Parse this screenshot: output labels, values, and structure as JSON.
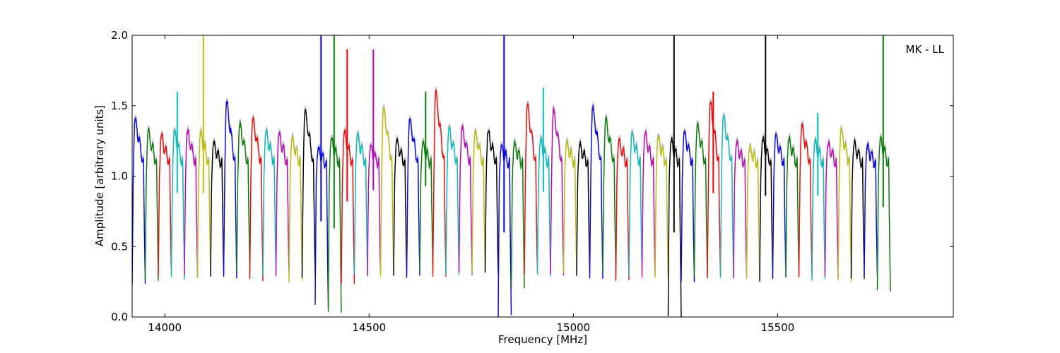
{
  "chart_data": {
    "type": "line",
    "title": "",
    "xlabel": "Frequency [MHz]",
    "ylabel": "Amplitude [arbitrary units]",
    "annotation": "MK - LL",
    "xlim": [
      13920,
      15930
    ],
    "ylim": [
      0.0,
      2.0
    ],
    "xticks": [
      14000,
      14500,
      15000,
      15500
    ],
    "xtick_labels": [
      "14000",
      "14500",
      "15000",
      "15500"
    ],
    "yticks": [
      0.0,
      0.5,
      1.0,
      1.5,
      2.0
    ],
    "ytick_labels": [
      "0.0",
      "0.5",
      "1.0",
      "1.5",
      "2.0"
    ],
    "grid": false,
    "legend": "none",
    "color_cycle": [
      "#0000ff",
      "#008000",
      "#ff0000",
      "#00bfbf",
      "#bf00bf",
      "#bfbf00",
      "#000000"
    ],
    "background_trace_color": "#bfbfbf",
    "channel_width_mhz": 32,
    "channel_start_mhz": 13920,
    "channels": [
      {
        "peak": 1.4,
        "min": 0.22
      },
      {
        "peak": 1.31,
        "min": 0.27
      },
      {
        "peak": 1.28,
        "min": 0.3
      },
      {
        "peak": 1.31,
        "min": 0.28,
        "spike": 1.6
      },
      {
        "peak": 1.31,
        "min": 0.3
      },
      {
        "peak": 1.3,
        "min": 0.28,
        "spike": 2.0
      },
      {
        "peak": 1.22,
        "min": 0.3
      },
      {
        "peak": 1.53,
        "min": 0.28
      },
      {
        "peak": 1.36,
        "min": 0.32
      },
      {
        "peak": 1.4,
        "min": 0.27
      },
      {
        "peak": 1.31,
        "min": 0.3
      },
      {
        "peak": 1.29,
        "min": 0.3
      },
      {
        "peak": 1.25,
        "min": 0.25
      },
      {
        "peak": 1.46,
        "min": 0.28
      },
      {
        "peak": 1.18,
        "min": 0.08,
        "spike": 2.0
      },
      {
        "peak": 1.25,
        "min": 0.03,
        "spike": 2.0
      },
      {
        "peak": 1.3,
        "min": 0.22,
        "spike": 1.9
      },
      {
        "peak": 1.28,
        "min": 0.3
      },
      {
        "peak": 1.2,
        "min": 0.3,
        "spike": 1.9
      },
      {
        "peak": 1.48,
        "min": 0.3
      },
      {
        "peak": 1.24,
        "min": 0.3
      },
      {
        "peak": 1.4,
        "min": 0.28
      },
      {
        "peak": 1.22,
        "min": 0.33,
        "spike": 1.6
      },
      {
        "peak": 1.6,
        "min": 0.3
      },
      {
        "peak": 1.33,
        "min": 0.3
      },
      {
        "peak": 1.34,
        "min": 0.31
      },
      {
        "peak": 1.3,
        "min": 0.31
      },
      {
        "peak": 1.31,
        "min": 0.3
      },
      {
        "peak": 1.2,
        "min": 0.0,
        "spike": 2.0
      },
      {
        "peak": 1.22,
        "min": 0.2
      },
      {
        "peak": 1.5,
        "min": 0.3
      },
      {
        "peak": 1.24,
        "min": 0.29,
        "spike": 1.63
      },
      {
        "peak": 1.47,
        "min": 0.3
      },
      {
        "peak": 1.22,
        "min": 0.3
      },
      {
        "peak": 1.21,
        "min": 0.3
      },
      {
        "peak": 1.49,
        "min": 0.28
      },
      {
        "peak": 1.4,
        "min": 0.3
      },
      {
        "peak": 1.24,
        "min": 0.25
      },
      {
        "peak": 1.29,
        "min": 0.3
      },
      {
        "peak": 1.29,
        "min": 0.29
      },
      {
        "peak": 1.26,
        "min": 0.27
      },
      {
        "peak": 1.24,
        "min": 0.0,
        "spike": 2.0
      },
      {
        "peak": 1.3,
        "min": 0.24
      },
      {
        "peak": 1.35,
        "min": 0.28
      },
      {
        "peak": 1.52,
        "min": 0.28,
        "spike": 1.6
      },
      {
        "peak": 1.42,
        "min": 0.28
      },
      {
        "peak": 1.22,
        "min": 0.29
      },
      {
        "peak": 1.18,
        "min": 0.27
      },
      {
        "peak": 1.25,
        "min": 0.26,
        "spike": 2.0
      },
      {
        "peak": 1.28,
        "min": 0.29
      },
      {
        "peak": 1.25,
        "min": 0.28
      },
      {
        "peak": 1.35,
        "min": 0.28
      },
      {
        "peak": 1.23,
        "min": 0.26,
        "spike": 1.45
      },
      {
        "peak": 1.22,
        "min": 0.28
      },
      {
        "peak": 1.32,
        "min": 0.26
      },
      {
        "peak": 1.22,
        "min": 0.28
      },
      {
        "peak": 1.2,
        "min": 0.28
      },
      {
        "peak": 1.25,
        "min": 0.18,
        "spike": 2.0
      }
    ]
  }
}
